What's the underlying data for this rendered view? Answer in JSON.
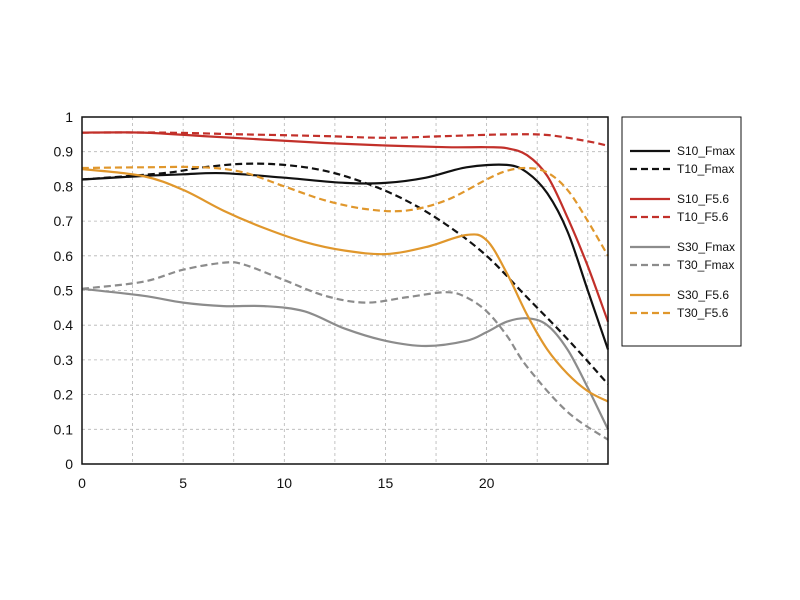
{
  "chart_data": {
    "type": "line",
    "title": "",
    "xlabel": "",
    "ylabel": "",
    "xlim": [
      0,
      26
    ],
    "ylim": [
      0,
      1
    ],
    "x_ticks": [
      0,
      5,
      10,
      15,
      20
    ],
    "y_ticks": [
      0,
      0.1,
      0.2,
      0.3,
      0.4,
      0.5,
      0.6,
      0.7,
      0.8,
      0.9,
      1
    ],
    "x_tick_labels": [
      "0",
      "5",
      "10",
      "15",
      "20"
    ],
    "y_tick_labels": [
      "0",
      "0.1",
      "0.2",
      "0.3",
      "0.4",
      "0.5",
      "0.6",
      "0.7",
      "0.8",
      "0.9",
      "1"
    ],
    "grid": true,
    "legend_position": "right",
    "series": [
      {
        "name": "S10_Fmax",
        "color": "#111111",
        "dash": false,
        "x": [
          0,
          3,
          5,
          7,
          10,
          13,
          15,
          17,
          19,
          21,
          22,
          23,
          24,
          25,
          26
        ],
        "y": [
          0.82,
          0.83,
          0.835,
          0.838,
          0.825,
          0.81,
          0.81,
          0.825,
          0.855,
          0.862,
          0.84,
          0.78,
          0.67,
          0.5,
          0.33
        ]
      },
      {
        "name": "T10_Fmax",
        "color": "#111111",
        "dash": true,
        "x": [
          0,
          4,
          6,
          8,
          10,
          12,
          14,
          16,
          18,
          20,
          22,
          24,
          26
        ],
        "y": [
          0.82,
          0.838,
          0.855,
          0.865,
          0.862,
          0.845,
          0.81,
          0.76,
          0.69,
          0.6,
          0.48,
          0.36,
          0.23
        ]
      },
      {
        "name": "S10_F5.6",
        "color": "#c2302a",
        "dash": false,
        "x": [
          0,
          3,
          6,
          9,
          12,
          15,
          18,
          20,
          21,
          22,
          23,
          24,
          25,
          26
        ],
        "y": [
          0.955,
          0.955,
          0.945,
          0.935,
          0.925,
          0.918,
          0.913,
          0.913,
          0.91,
          0.89,
          0.83,
          0.71,
          0.57,
          0.41
        ]
      },
      {
        "name": "T10_F5.6",
        "color": "#c2302a",
        "dash": true,
        "x": [
          0,
          4,
          8,
          12,
          15,
          18,
          21,
          23,
          25,
          26
        ],
        "y": [
          0.955,
          0.955,
          0.95,
          0.945,
          0.94,
          0.945,
          0.95,
          0.948,
          0.93,
          0.917
        ]
      },
      {
        "name": "S30_Fmax",
        "color": "#8c8c8c",
        "dash": false,
        "x": [
          0,
          3,
          5,
          7,
          9,
          11,
          13,
          15,
          17,
          19,
          20,
          21,
          22,
          23,
          24,
          25,
          26
        ],
        "y": [
          0.505,
          0.485,
          0.465,
          0.455,
          0.455,
          0.44,
          0.39,
          0.355,
          0.34,
          0.355,
          0.38,
          0.41,
          0.42,
          0.4,
          0.33,
          0.22,
          0.1
        ]
      },
      {
        "name": "T30_Fmax",
        "color": "#8c8c8c",
        "dash": true,
        "x": [
          0,
          3,
          5,
          7,
          8,
          10,
          12,
          14,
          16,
          18,
          19,
          20,
          21,
          22,
          24,
          26
        ],
        "y": [
          0.505,
          0.525,
          0.56,
          0.58,
          0.575,
          0.53,
          0.485,
          0.465,
          0.48,
          0.495,
          0.48,
          0.44,
          0.37,
          0.28,
          0.15,
          0.07
        ]
      },
      {
        "name": "S30_F5.6",
        "color": "#e0972c",
        "dash": false,
        "x": [
          0,
          3,
          5,
          7,
          9,
          11,
          13,
          15,
          17,
          19,
          20,
          21,
          22,
          23,
          24,
          25,
          26
        ],
        "y": [
          0.85,
          0.83,
          0.79,
          0.73,
          0.68,
          0.64,
          0.615,
          0.605,
          0.625,
          0.66,
          0.645,
          0.55,
          0.43,
          0.33,
          0.26,
          0.21,
          0.18
        ]
      },
      {
        "name": "T30_F5.6",
        "color": "#e0972c",
        "dash": true,
        "x": [
          0,
          3,
          6,
          8,
          10,
          12,
          14,
          16,
          18,
          20,
          21,
          22,
          23,
          24,
          25,
          26
        ],
        "y": [
          0.853,
          0.855,
          0.855,
          0.84,
          0.8,
          0.76,
          0.735,
          0.73,
          0.76,
          0.82,
          0.845,
          0.853,
          0.84,
          0.79,
          0.7,
          0.6
        ]
      }
    ]
  }
}
